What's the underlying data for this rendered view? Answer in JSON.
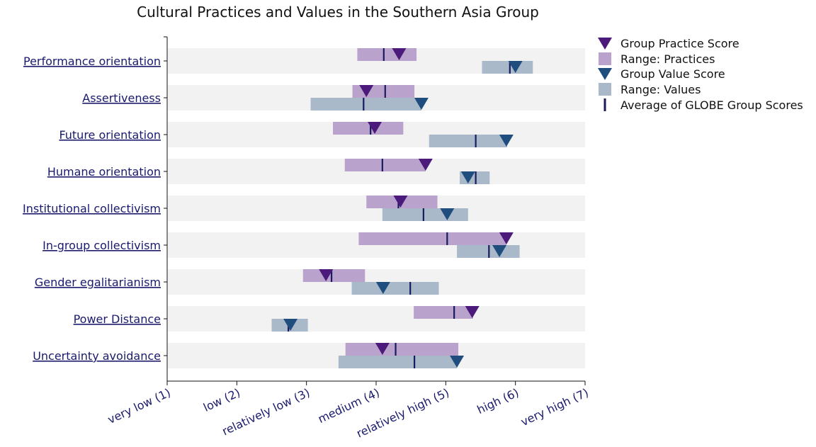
{
  "chart_data": {
    "type": "range-dot",
    "title": "Cultural Practices and Values in the Southern Asia Group",
    "xlim": [
      1,
      7
    ],
    "x_ticks": [
      {
        "value": 1,
        "label": "very low (1)"
      },
      {
        "value": 2,
        "label": "low (2)"
      },
      {
        "value": 3,
        "label": "relatively low (3)"
      },
      {
        "value": 4,
        "label": "medium (4)"
      },
      {
        "value": 5,
        "label": "relatively high (5)"
      },
      {
        "value": 6,
        "label": "high (6)"
      },
      {
        "value": 7,
        "label": "very high (7)"
      }
    ],
    "legend": {
      "position": "right",
      "items": [
        {
          "key": "practice_score",
          "label": "Group Practice Score"
        },
        {
          "key": "practice_range",
          "label": "Range: Practices"
        },
        {
          "key": "value_score",
          "label": "Group Value Score"
        },
        {
          "key": "value_range",
          "label": "Range: Values"
        },
        {
          "key": "average",
          "label": "Average of GLOBE Group Scores"
        }
      ]
    },
    "colors": {
      "practice_score": "#4b1a7a",
      "practice_range": "#b9a3cc",
      "value_score": "#1f4e7e",
      "value_range": "#a9b9c9",
      "average": "#1a1a5e",
      "row_band": "#f2f2f2"
    },
    "categories": [
      {
        "name": "Performance orientation",
        "practice_range": [
          3.73,
          4.58
        ],
        "practice_avg": 4.11,
        "practice_score": 4.33,
        "value_range": [
          5.52,
          6.25
        ],
        "value_avg": 5.92,
        "value_score": 6.0
      },
      {
        "name": "Assertiveness",
        "practice_range": [
          3.66,
          4.55
        ],
        "practice_avg": 4.13,
        "practice_score": 3.86,
        "value_range": [
          3.06,
          4.65
        ],
        "value_avg": 3.82,
        "value_score": 4.65
      },
      {
        "name": "Future orientation",
        "practice_range": [
          3.38,
          4.39
        ],
        "practice_avg": 3.92,
        "practice_score": 3.98,
        "value_range": [
          4.76,
          5.88
        ],
        "value_avg": 5.43,
        "value_score": 5.87
      },
      {
        "name": "Humane orientation",
        "practice_range": [
          3.55,
          4.71
        ],
        "practice_avg": 4.09,
        "practice_score": 4.71,
        "value_range": [
          5.2,
          5.63
        ],
        "value_avg": 5.43,
        "value_score": 5.32
      },
      {
        "name": "Institutional collectivism",
        "practice_range": [
          3.86,
          4.88
        ],
        "practice_avg": 4.32,
        "practice_score": 4.35,
        "value_range": [
          4.09,
          5.32
        ],
        "value_avg": 4.68,
        "value_score": 5.02
      },
      {
        "name": "In-group collectivism",
        "practice_range": [
          3.75,
          5.87
        ],
        "practice_avg": 5.02,
        "practice_score": 5.87,
        "value_range": [
          5.16,
          6.06
        ],
        "value_avg": 5.62,
        "value_score": 5.77
      },
      {
        "name": "Gender egalitarianism",
        "practice_range": [
          2.95,
          3.84
        ],
        "practice_avg": 3.36,
        "practice_score": 3.28,
        "value_range": [
          3.65,
          4.9
        ],
        "value_avg": 4.49,
        "value_score": 4.1
      },
      {
        "name": "Power Distance",
        "practice_range": [
          4.54,
          5.39
        ],
        "practice_avg": 5.12,
        "practice_score": 5.38,
        "value_range": [
          2.5,
          3.02
        ],
        "value_avg": 2.74,
        "value_score": 2.77
      },
      {
        "name": "Uncertainty avoidance",
        "practice_range": [
          3.56,
          5.18
        ],
        "practice_avg": 4.28,
        "practice_score": 4.09,
        "value_range": [
          3.46,
          5.16
        ],
        "value_avg": 4.55,
        "value_score": 5.16
      }
    ]
  }
}
